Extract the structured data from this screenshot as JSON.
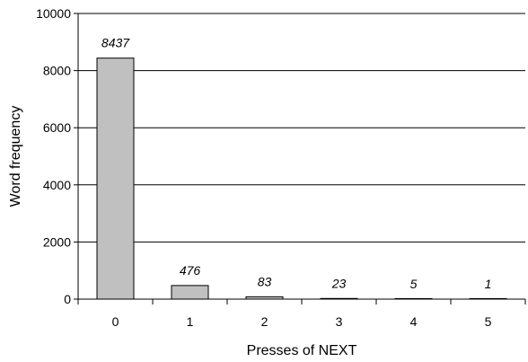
{
  "chart_data": {
    "type": "bar",
    "categories": [
      "0",
      "1",
      "2",
      "3",
      "4",
      "5"
    ],
    "values": [
      8437,
      476,
      83,
      23,
      5,
      1
    ],
    "data_labels": [
      "8437",
      "476",
      "83",
      "23",
      "5",
      "1"
    ],
    "xlabel": "Presses of NEXT",
    "ylabel": "Word frequency",
    "ylim": [
      0,
      10000
    ],
    "yticks": [
      0,
      2000,
      4000,
      6000,
      8000,
      10000
    ],
    "ytick_labels": [
      "0",
      "2000",
      "4000",
      "6000",
      "8000",
      "10000"
    ],
    "grid": true,
    "bar_color": "#c0c0c0"
  }
}
